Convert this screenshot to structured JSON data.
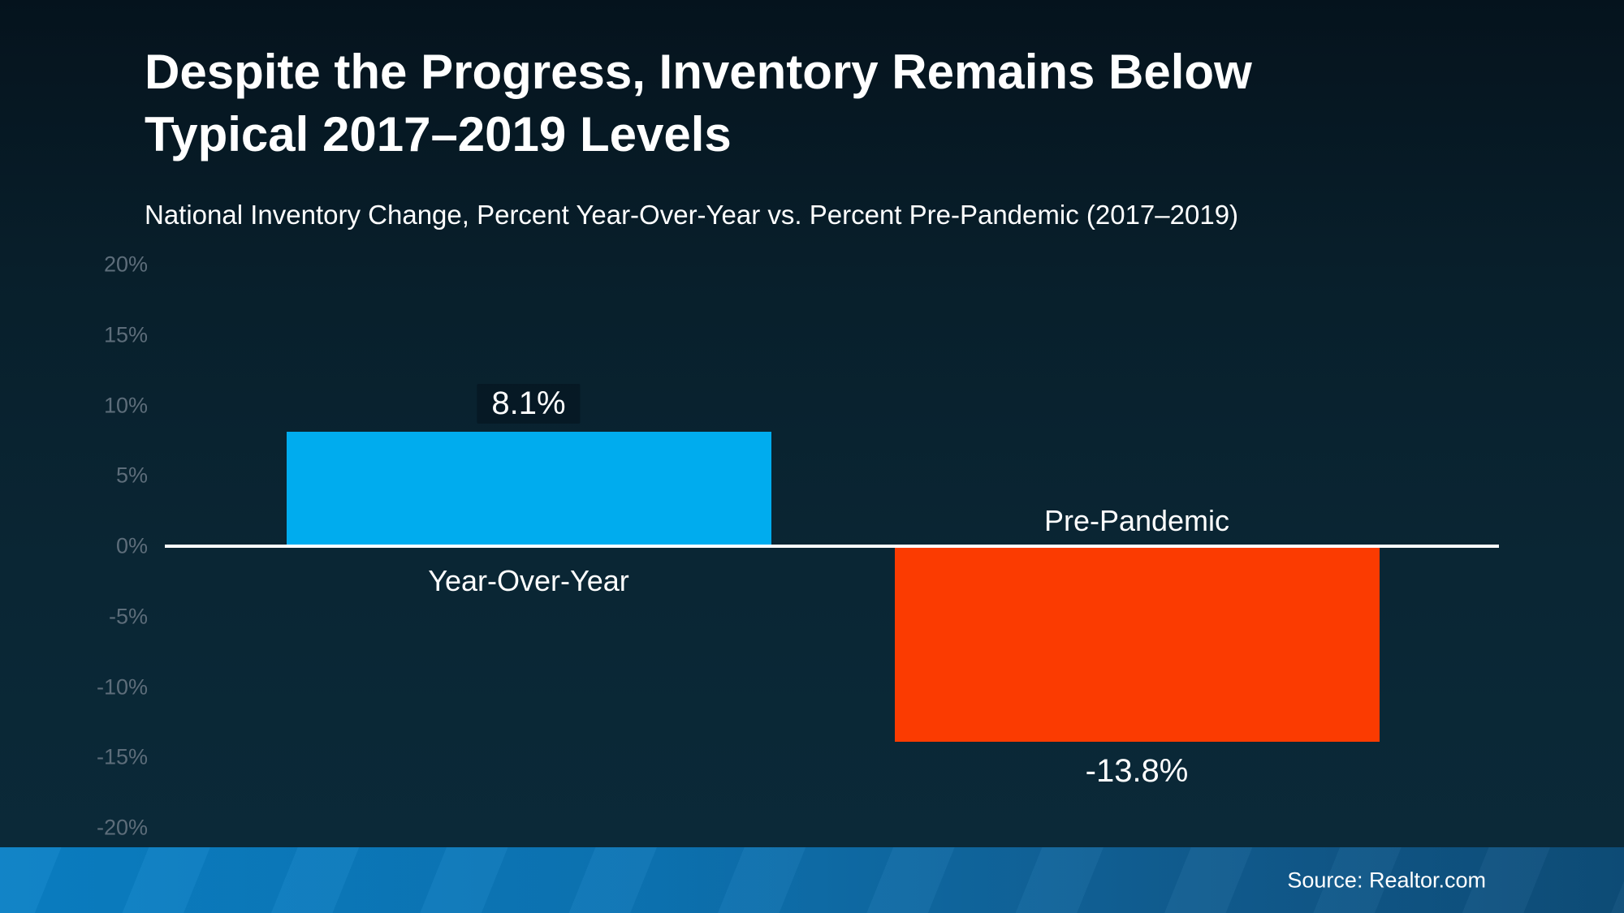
{
  "header": {
    "title_line1": "Despite the Progress, Inventory Remains Below",
    "title_line2": "Typical 2017–2019 Levels",
    "subtitle": "National Inventory Change, Percent Year-Over-Year vs. Percent Pre-Pandemic (2017–2019)"
  },
  "footer": {
    "source": "Source: Realtor.com"
  },
  "colors": {
    "background_top": "#05131d",
    "background_bottom": "#0b2a39",
    "bar_positive": "#00ACEE",
    "bar_negative": "#FB3B01",
    "zero_line": "#ffffff",
    "tick_text": "#5d6d7a",
    "text": "#ffffff",
    "footer_left": "#0a80c5",
    "footer_right": "#0d4d79"
  },
  "chart_data": {
    "type": "bar",
    "title": "Despite the Progress, Inventory Remains Below Typical 2017–2019 Levels",
    "subtitle": "National Inventory Change, Percent Year-Over-Year vs. Percent Pre-Pandemic (2017–2019)",
    "categories": [
      "Year-Over-Year",
      "Pre-Pandemic"
    ],
    "values": [
      8.1,
      -13.8
    ],
    "value_labels": [
      "8.1%",
      "-13.8%"
    ],
    "bar_colors": [
      "#00ACEE",
      "#FB3B01"
    ],
    "ylabel": "",
    "xlabel": "",
    "ylim": [
      -20,
      20
    ],
    "ytick_interval": 5,
    "ytick_labels": [
      "20%",
      "15%",
      "10%",
      "5%",
      "0%",
      "-5%",
      "-10%",
      "-15%",
      "-20%"
    ],
    "ytick_values": [
      20,
      15,
      10,
      5,
      0,
      -5,
      -10,
      -15,
      -20
    ],
    "grid": false,
    "legend_position": "none",
    "source": "Source: Realtor.com"
  }
}
